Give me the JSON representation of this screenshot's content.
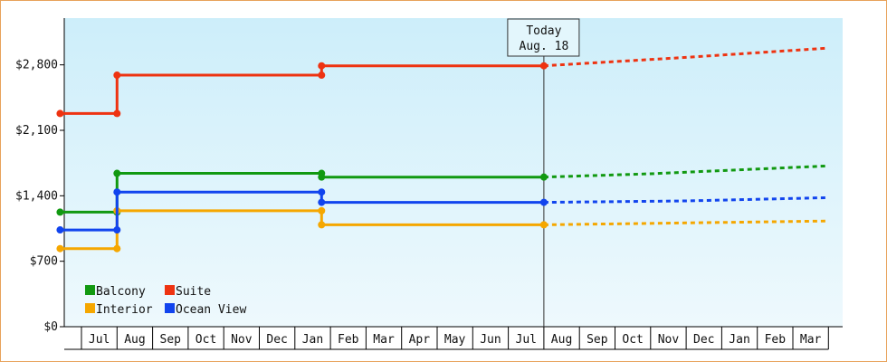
{
  "chart_data": {
    "type": "line",
    "title": "",
    "xlabel": "",
    "ylabel": "",
    "y_ticks": [
      "$0",
      "$700",
      "$1,400",
      "$2,100",
      "$2,800"
    ],
    "ylim": [
      0,
      3300
    ],
    "x_months": [
      "Jul",
      "Aug",
      "Sep",
      "Oct",
      "Nov",
      "Dec",
      "Jan",
      "Feb",
      "Mar",
      "Apr",
      "May",
      "Jun",
      "Jul",
      "Aug",
      "Sep",
      "Oct",
      "Nov",
      "Dec",
      "Jan",
      "Feb",
      "Mar"
    ],
    "today_marker": {
      "line1": "Today",
      "line2": "Aug. 18",
      "x": 13.0
    },
    "grid": false,
    "background": "light-blue-gradient",
    "legend_placement": "bottom-left",
    "series": [
      {
        "name": "Balcony",
        "color": "#119911",
        "points": [
          [
            -0.6,
            1225
          ],
          [
            1.0,
            1225
          ],
          [
            1.0,
            1640
          ],
          [
            6.75,
            1640
          ],
          [
            6.75,
            1600
          ],
          [
            13.0,
            1600
          ]
        ],
        "forecast": [
          [
            13.0,
            1600
          ],
          [
            16.0,
            1635
          ],
          [
            21.0,
            1720
          ]
        ]
      },
      {
        "name": "Suite",
        "color": "#ee3311",
        "points": [
          [
            -0.6,
            2280
          ],
          [
            1.0,
            2280
          ],
          [
            1.0,
            2690
          ],
          [
            6.75,
            2690
          ],
          [
            6.75,
            2790
          ],
          [
            13.0,
            2790
          ]
        ],
        "forecast": [
          [
            13.0,
            2790
          ],
          [
            17.0,
            2880
          ],
          [
            21.0,
            2980
          ]
        ]
      },
      {
        "name": "Interior",
        "color": "#f5a700",
        "points": [
          [
            -0.6,
            835
          ],
          [
            1.0,
            835
          ],
          [
            1.0,
            1240
          ],
          [
            6.75,
            1240
          ],
          [
            6.75,
            1090
          ],
          [
            13.0,
            1090
          ]
        ],
        "forecast": [
          [
            13.0,
            1090
          ],
          [
            17.0,
            1110
          ],
          [
            21.0,
            1130
          ]
        ]
      },
      {
        "name": "Ocean View",
        "color": "#1144ee",
        "points": [
          [
            -0.6,
            1035
          ],
          [
            1.0,
            1035
          ],
          [
            1.0,
            1440
          ],
          [
            6.75,
            1440
          ],
          [
            6.75,
            1330
          ],
          [
            13.0,
            1330
          ]
        ],
        "forecast": [
          [
            13.0,
            1330
          ],
          [
            17.0,
            1345
          ],
          [
            21.0,
            1380
          ]
        ]
      }
    ],
    "legend": [
      {
        "name": "Balcony",
        "color": "#119911"
      },
      {
        "name": "Suite",
        "color": "#ee3311"
      },
      {
        "name": "Interior",
        "color": "#f5a700"
      },
      {
        "name": "Ocean View",
        "color": "#1144ee"
      }
    ]
  }
}
